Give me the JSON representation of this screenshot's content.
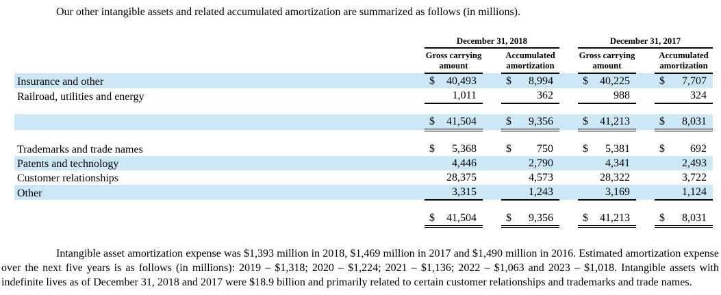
{
  "page": {
    "background": "#ffffff",
    "text_color": "#000000",
    "highlight_color": "#cbe7f8"
  },
  "intro": {
    "text": "Our other intangible assets and related accumulated amortization are summarized as follows (in millions)."
  },
  "table": {
    "currency_symbol": "$",
    "column_groups": [
      {
        "label": "December 31, 2018",
        "columns": [
          "Gross carrying amount",
          "Accumulated amortization"
        ]
      },
      {
        "label": "December 31, 2017",
        "columns": [
          "Gross carrying amount",
          "Accumulated amortization"
        ]
      }
    ],
    "rows": [
      {
        "type": "data",
        "label": "Insurance and other",
        "dollar": true,
        "highlight": true,
        "underline": "none",
        "values": [
          "40,493",
          "8,994",
          "40,225",
          "7,707"
        ]
      },
      {
        "type": "data",
        "label": "Railroad, utilities and energy",
        "dollar": false,
        "highlight": false,
        "underline": "single",
        "values": [
          "1,011",
          "362",
          "988",
          "324"
        ]
      },
      {
        "type": "spacer"
      },
      {
        "type": "data",
        "label": "",
        "dollar": true,
        "highlight": true,
        "underline": "double",
        "values": [
          "41,504",
          "9,356",
          "41,213",
          "8,031"
        ]
      },
      {
        "type": "spacer"
      },
      {
        "type": "data",
        "label": "Trademarks and trade names",
        "dollar": true,
        "highlight": false,
        "underline": "none",
        "values": [
          "5,368",
          "750",
          "5,381",
          "692"
        ]
      },
      {
        "type": "data",
        "label": "Patents and technology",
        "dollar": false,
        "highlight": true,
        "underline": "none",
        "values": [
          "4,446",
          "2,790",
          "4,341",
          "2,493"
        ]
      },
      {
        "type": "data",
        "label": "Customer relationships",
        "dollar": false,
        "highlight": false,
        "underline": "none",
        "values": [
          "28,375",
          "4,573",
          "28,322",
          "3,722"
        ]
      },
      {
        "type": "data",
        "label": "Other",
        "dollar": false,
        "highlight": true,
        "underline": "single",
        "values": [
          "3,315",
          "1,243",
          "3,169",
          "1,124"
        ]
      },
      {
        "type": "spacer"
      },
      {
        "type": "data",
        "label": "",
        "dollar": true,
        "highlight": false,
        "underline": "double",
        "values": [
          "41,504",
          "9,356",
          "41,213",
          "8,031"
        ]
      }
    ]
  },
  "footer": {
    "text": "Intangible asset amortization expense was $1,393 million in 2018, $1,469 million in 2017 and $1,490 million in 2016. Estimated amortization expense over the next five years is as follows (in millions): 2019 – $1,318; 2020 – $1,224; 2021 – $1,136; 2022 – $1,063 and 2023 – $1,018. Intangible assets with indefinite lives as of December 31, 2018 and 2017 were $18.9 billion and primarily related to certain customer relationships and trademarks and trade names."
  }
}
